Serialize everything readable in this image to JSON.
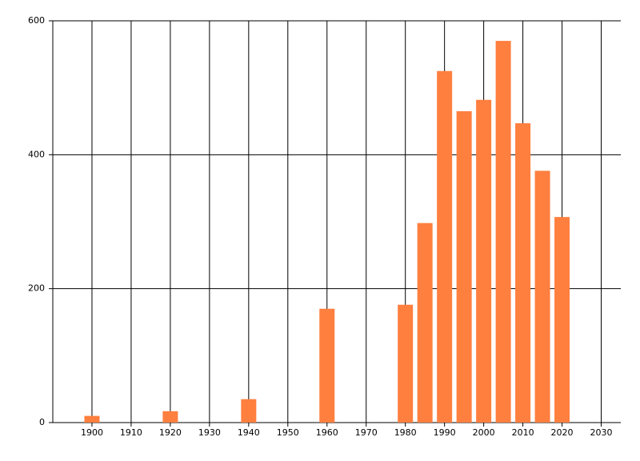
{
  "chart_data": {
    "type": "bar",
    "x": [
      1900,
      1920,
      1940,
      1960,
      1980,
      1985,
      1990,
      1995,
      2000,
      2005,
      2010,
      2015,
      2020
    ],
    "values": [
      10,
      17,
      35,
      170,
      176,
      298,
      525,
      465,
      482,
      570,
      447,
      376,
      307
    ],
    "color": "#ff7f3f",
    "xlim": [
      1890,
      2035
    ],
    "xticks": [
      1900,
      1910,
      1920,
      1930,
      1940,
      1950,
      1960,
      1970,
      1980,
      1990,
      2000,
      2010,
      2020,
      2030
    ],
    "ylim": [
      0,
      600
    ],
    "yticks": [
      0,
      200,
      400,
      600
    ],
    "grid": true
  }
}
